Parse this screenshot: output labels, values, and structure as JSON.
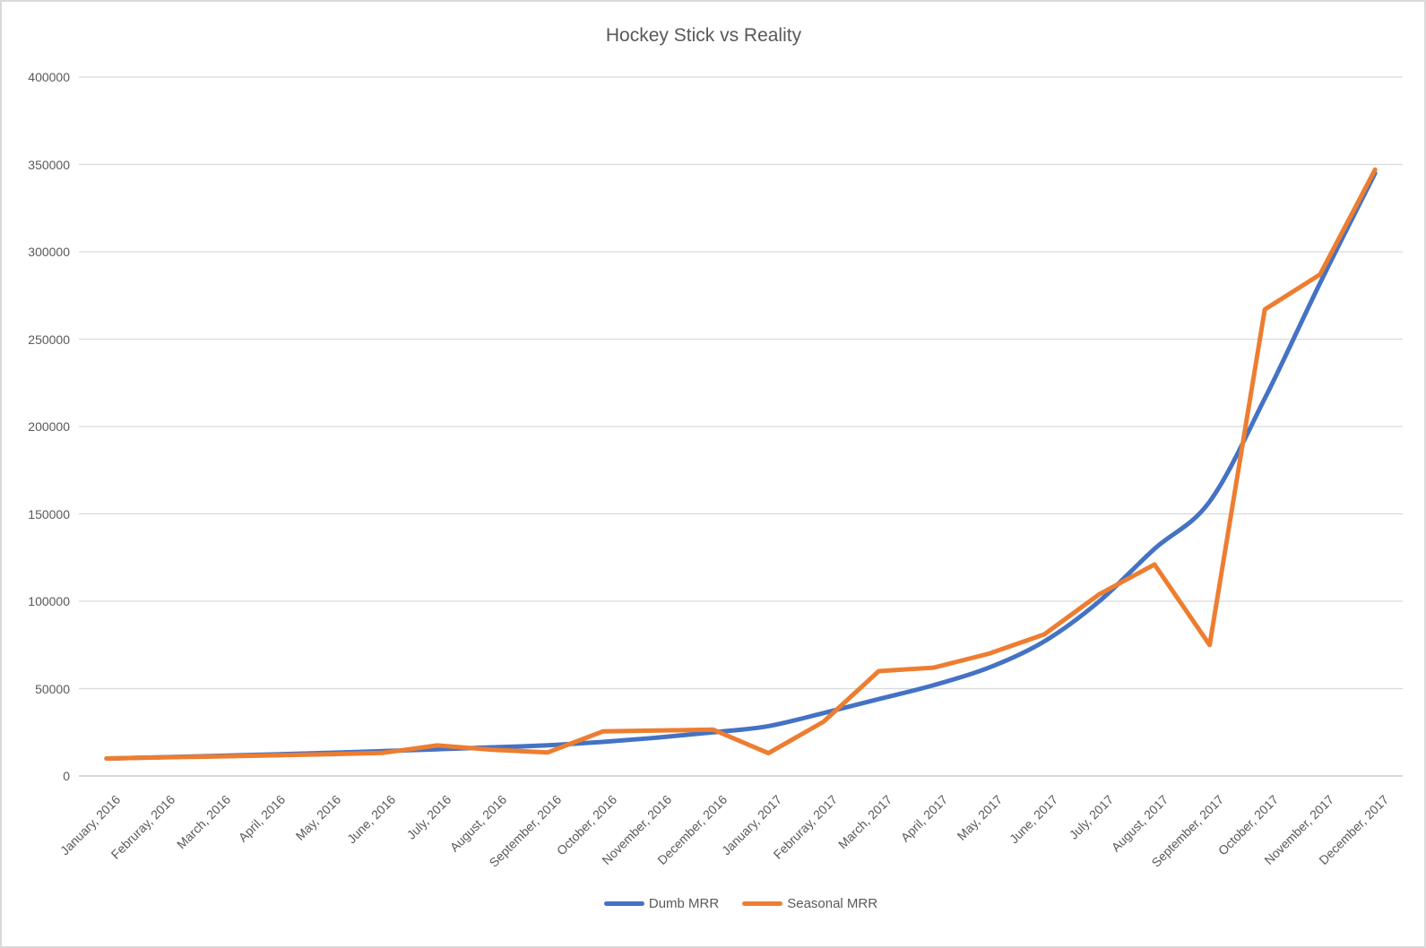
{
  "chart_data": {
    "type": "line",
    "title": "Hockey Stick vs Reality",
    "categories": [
      "January, 2016",
      "Februray, 2016",
      "March, 2016",
      "April, 2016",
      "May, 2016",
      "June, 2016",
      "July, 2016",
      "August, 2016",
      "September, 2016",
      "October, 2016",
      "November, 2016",
      "December, 2016",
      "January, 2017",
      "Februray, 2017",
      "March, 2017",
      "April, 2017",
      "May, 2017",
      "June, 2017",
      "July, 2017",
      "August, 2017",
      "September, 2017",
      "October, 2017",
      "November, 2017",
      "December, 2017"
    ],
    "series": [
      {
        "name": "Dumb MRR",
        "color": "#4472C4",
        "smooth": true,
        "values": [
          10000,
          10700,
          11500,
          12300,
          13200,
          14200,
          15300,
          16400,
          17600,
          19500,
          22000,
          25000,
          28500,
          36000,
          44000,
          52000,
          62000,
          77000,
          100000,
          130000,
          157000,
          216000,
          282000,
          345000
        ]
      },
      {
        "name": "Seasonal MRR",
        "color": "#ED7D31",
        "smooth": false,
        "values": [
          10000,
          10600,
          11200,
          11800,
          12400,
          13200,
          17500,
          15000,
          13500,
          25500,
          26000,
          26500,
          13000,
          31000,
          60000,
          62000,
          70000,
          81000,
          104000,
          121000,
          75000,
          267000,
          287000,
          347000
        ]
      }
    ],
    "ylim": [
      0,
      400000
    ],
    "ytick_interval": 50000,
    "yticks": [
      "0",
      "50000",
      "100000",
      "150000",
      "200000",
      "250000",
      "300000",
      "350000",
      "400000"
    ],
    "grid": "horizontal",
    "gridline_color": "#D9D9D9",
    "axis_line_color": "#BFBFBF",
    "text_color": "#595959",
    "legend_position": "bottom-center"
  }
}
